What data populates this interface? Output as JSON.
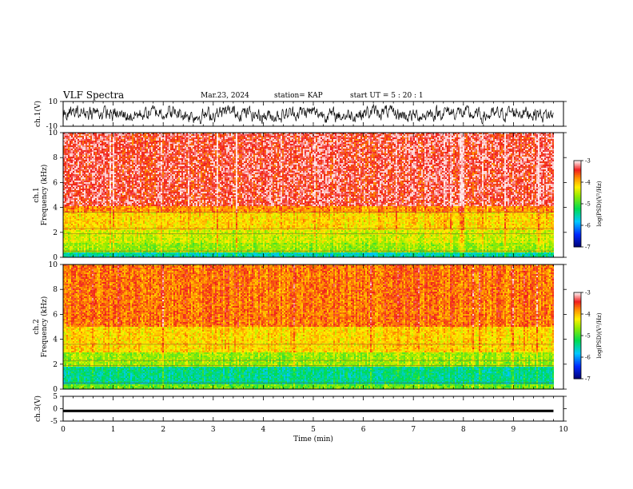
{
  "header": {
    "title": "VLF Spectra",
    "date": "Mar.23, 2024",
    "station": "station= KAP",
    "start": "start  UT =   5 : 20 : 1"
  },
  "chart_data": [
    {
      "type": "line",
      "panel": "ch1-waveform",
      "ylabel": "ch.1(V)",
      "ylim": [
        -10,
        10
      ],
      "xlim": [
        0,
        10
      ],
      "yticks": [
        "10",
        "-10"
      ],
      "note_values": "dense noisy waveform, amplitude roughly -7 to 7 V across 0–9.8 min",
      "x_end": 9.8
    },
    {
      "type": "heatmap",
      "panel": "ch1-spectrogram",
      "ylabel": "ch.1",
      "ylabel2": "Frequency  (kHz)",
      "ylim": [
        0,
        10
      ],
      "xlim": [
        0,
        10
      ],
      "x_end": 9.8,
      "yticks": [
        "0",
        "2",
        "4",
        "6",
        "8",
        "10"
      ],
      "bands": [
        {
          "from": 0.0,
          "to": 0.4,
          "level": -5.5
        },
        {
          "from": 0.4,
          "to": 1.2,
          "level": -4.6
        },
        {
          "from": 1.2,
          "to": 2.2,
          "level": -4.4
        },
        {
          "from": 2.2,
          "to": 3.6,
          "level": -4.1
        },
        {
          "from": 3.6,
          "to": 4.2,
          "level": -3.8
        },
        {
          "from": 4.2,
          "to": 10.0,
          "level": -3.4
        }
      ],
      "colorbar": {
        "label": "log(PSD)(V²/Hz)",
        "range": [
          -7,
          -3
        ],
        "ticks": [
          "-3",
          "-4",
          "-5",
          "-6",
          "-7"
        ]
      }
    },
    {
      "type": "heatmap",
      "panel": "ch2-spectrogram",
      "ylabel": "ch.2",
      "ylabel2": "Frequency  (kHz)",
      "ylim": [
        0,
        10
      ],
      "xlim": [
        0,
        10
      ],
      "x_end": 9.8,
      "yticks": [
        "0",
        "2",
        "4",
        "6",
        "8",
        "10"
      ],
      "bands": [
        {
          "from": 0.0,
          "to": 0.5,
          "level": -4.8
        },
        {
          "from": 0.5,
          "to": 1.8,
          "level": -5.4
        },
        {
          "from": 1.8,
          "to": 3.0,
          "level": -4.6
        },
        {
          "from": 3.0,
          "to": 5.0,
          "level": -4.1
        },
        {
          "from": 5.0,
          "to": 10.0,
          "level": -3.7
        }
      ],
      "colorbar": {
        "label": "log(PSD)(V²/Hz)",
        "range": [
          -7,
          -3
        ],
        "ticks": [
          "-3",
          "-4",
          "-5",
          "-6",
          "-7"
        ]
      }
    },
    {
      "type": "line",
      "panel": "ch3-waveform",
      "ylabel": "ch.3(V)",
      "ylim": [
        -5,
        5
      ],
      "xlim": [
        0,
        10
      ],
      "x_end": 9.8,
      "yticks": [
        "5",
        "0",
        "-5"
      ],
      "level_band": [
        -1.4,
        -0.4
      ],
      "xlabel": "Time  (min)",
      "xticks": [
        "0",
        "1",
        "2",
        "3",
        "4",
        "5",
        "6",
        "7",
        "8",
        "9",
        "10"
      ]
    }
  ]
}
